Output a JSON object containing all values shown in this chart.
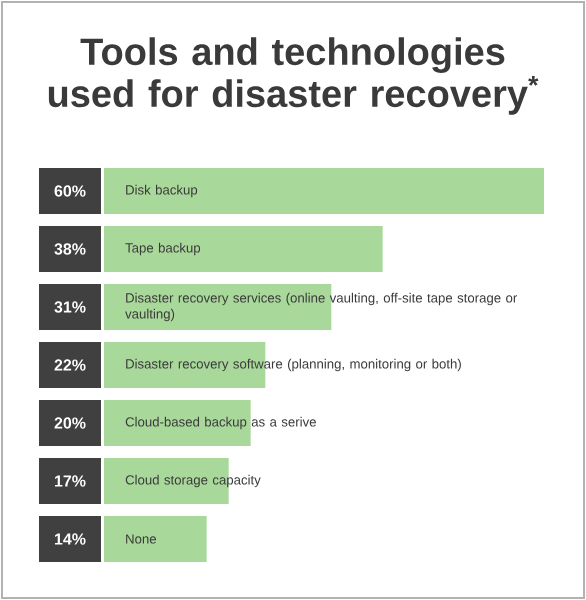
{
  "chart_data": {
    "type": "bar",
    "orientation": "horizontal",
    "title": "Tools and technologies used for disaster recovery$^{*}$",
    "categories": [
      "Disk backup",
      "Tape backup",
      "Disaster recovery services (online vaulting, off-site tape storage or vaulting)",
      "Disaster recovery software (planning, monitoring or both)",
      "Cloud-based backup as a serive",
      "Cloud storage capacity",
      "None"
    ],
    "values": [
      60,
      38,
      31,
      22,
      20,
      17,
      14
    ],
    "value_labels": [
      "60%",
      "38%",
      "31%",
      "22%",
      "20%",
      "17%",
      "14%"
    ],
    "color": "#a9d89b",
    "xlim": [
      0,
      60
    ],
    "tick_labels": false
  }
}
